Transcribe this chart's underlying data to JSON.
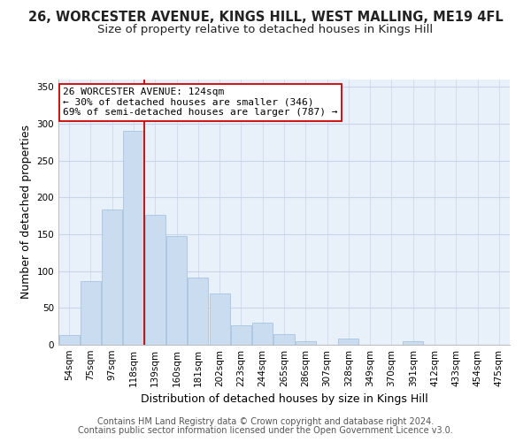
{
  "title": "26, WORCESTER AVENUE, KINGS HILL, WEST MALLING, ME19 4FL",
  "subtitle": "Size of property relative to detached houses in Kings Hill",
  "xlabel": "Distribution of detached houses by size in Kings Hill",
  "ylabel": "Number of detached properties",
  "bar_labels": [
    "54sqm",
    "75sqm",
    "97sqm",
    "118sqm",
    "139sqm",
    "160sqm",
    "181sqm",
    "202sqm",
    "223sqm",
    "244sqm",
    "265sqm",
    "286sqm",
    "307sqm",
    "328sqm",
    "349sqm",
    "370sqm",
    "391sqm",
    "412sqm",
    "433sqm",
    "454sqm",
    "475sqm"
  ],
  "bar_values": [
    13,
    87,
    184,
    290,
    176,
    148,
    91,
    70,
    27,
    30,
    15,
    5,
    0,
    9,
    0,
    0,
    5,
    0,
    0,
    0,
    0
  ],
  "bar_color": "#c9dcf0",
  "bar_edge_color": "#a8c4e0",
  "vline_x": 3.5,
  "vline_color": "#cc0000",
  "annotation_text": "26 WORCESTER AVENUE: 124sqm\n← 30% of detached houses are smaller (346)\n69% of semi-detached houses are larger (787) →",
  "annotation_box_color": "#ffffff",
  "annotation_box_edge": "#cc0000",
  "ylim": [
    0,
    360
  ],
  "yticks": [
    0,
    50,
    100,
    150,
    200,
    250,
    300,
    350
  ],
  "footer1": "Contains HM Land Registry data © Crown copyright and database right 2024.",
  "footer2": "Contains public sector information licensed under the Open Government Licence v3.0.",
  "bg_color": "#ffffff",
  "plot_bg_color": "#e8f0fa",
  "title_fontsize": 10.5,
  "subtitle_fontsize": 9.5,
  "axis_label_fontsize": 9,
  "tick_fontsize": 7.5,
  "footer_fontsize": 7,
  "annotation_fontsize": 8
}
